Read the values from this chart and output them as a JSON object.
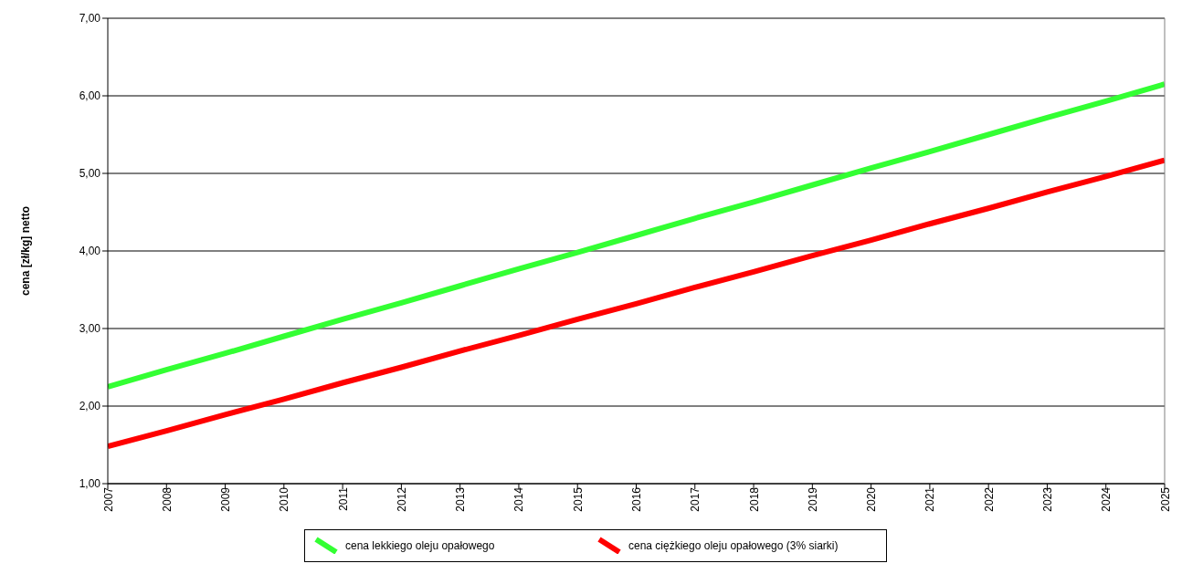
{
  "chart_data": {
    "type": "line",
    "ylabel": "cena [zł/kg] netto",
    "x": [
      2007,
      2008,
      2009,
      2010,
      2011,
      2012,
      2013,
      2014,
      2015,
      2016,
      2017,
      2018,
      2019,
      2020,
      2021,
      2022,
      2023,
      2024,
      2025
    ],
    "series": [
      {
        "name": "cena lekkiego oleju opałowego",
        "color": "#33ff33",
        "values": [
          2.25,
          2.47,
          2.68,
          2.9,
          3.12,
          3.33,
          3.55,
          3.77,
          3.98,
          4.2,
          4.42,
          4.63,
          4.85,
          5.07,
          5.28,
          5.5,
          5.72,
          5.93,
          6.15
        ]
      },
      {
        "name": "cena ciężkiego oleju opałowego (3% siarki)",
        "color": "#ff0000",
        "values": [
          1.48,
          1.68,
          1.89,
          2.09,
          2.3,
          2.5,
          2.71,
          2.91,
          3.12,
          3.32,
          3.53,
          3.73,
          3.94,
          4.14,
          4.35,
          4.55,
          4.76,
          4.96,
          5.17
        ]
      }
    ],
    "xlim": [
      2007,
      2025
    ],
    "xticks": [
      2007,
      2008,
      2009,
      2010,
      2011,
      2012,
      2013,
      2014,
      2015,
      2016,
      2017,
      2018,
      2019,
      2020,
      2021,
      2022,
      2023,
      2024,
      2025
    ],
    "ylim": [
      1,
      7
    ],
    "yticks": [
      {
        "value": 1,
        "label": "1,00"
      },
      {
        "value": 2,
        "label": "2,00"
      },
      {
        "value": 3,
        "label": "3,00"
      },
      {
        "value": 4,
        "label": "4,00"
      },
      {
        "value": 5,
        "label": "5,00"
      },
      {
        "value": 6,
        "label": "6,00"
      },
      {
        "value": 7,
        "label": "7,00"
      }
    ],
    "grid": "y",
    "legend": "bottom",
    "marker": "none",
    "line_style": "solid"
  }
}
